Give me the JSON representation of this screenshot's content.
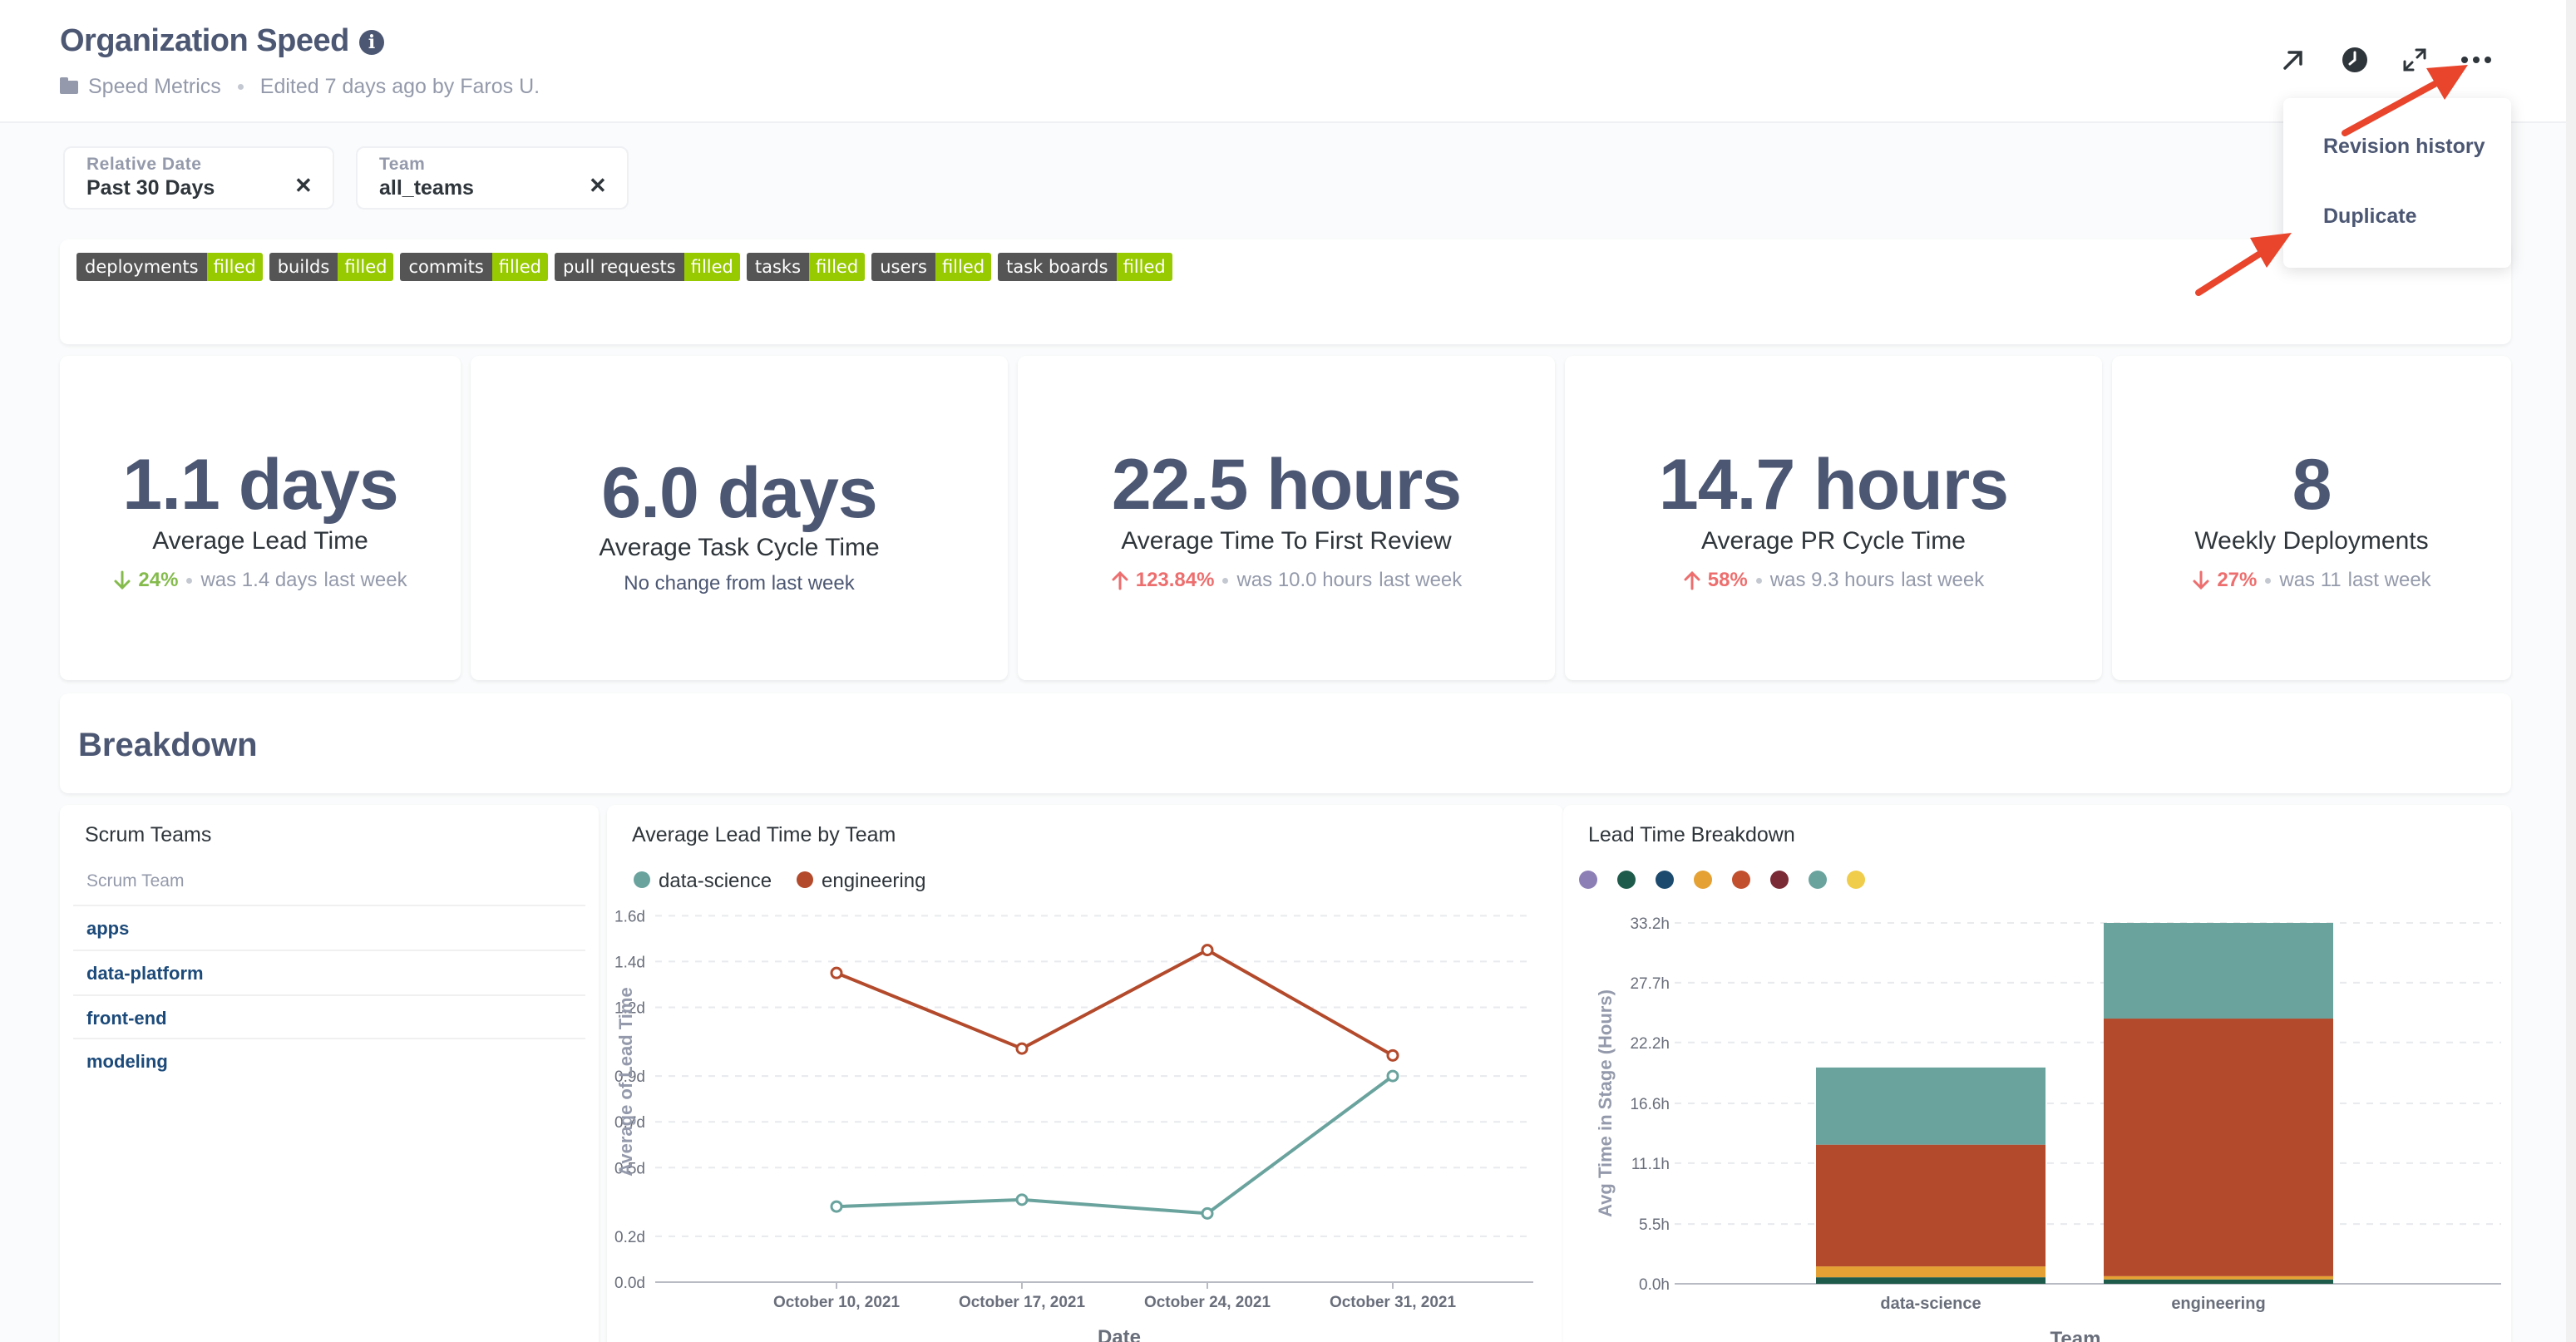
{
  "header": {
    "title": "Organization Speed",
    "collection": "Speed Metrics",
    "edited": "Edited 7 days ago by Faros U.",
    "icons": [
      "info-icon",
      "expand-icon",
      "history-icon",
      "fullscreen-icon",
      "more-icon"
    ]
  },
  "filters": [
    {
      "label": "Relative Date",
      "value": "Past 30 Days"
    },
    {
      "label": "Team",
      "value": "all_teams"
    }
  ],
  "tags": [
    {
      "key": "deployments",
      "value": "filled"
    },
    {
      "key": "builds",
      "value": "filled"
    },
    {
      "key": "commits",
      "value": "filled"
    },
    {
      "key": "pull requests",
      "value": "filled"
    },
    {
      "key": "tasks",
      "value": "filled"
    },
    {
      "key": "users",
      "value": "filled"
    },
    {
      "key": "task boards",
      "value": "filled"
    }
  ],
  "metrics": {
    "lead": {
      "value": "1.1 days",
      "label": "Average Lead Time",
      "pct": "24%",
      "was": "was 1.4 days",
      "period": "last week",
      "direction": "down",
      "color": "#84bb4c"
    },
    "task": {
      "value": "6.0 days",
      "label": "Average Task Cycle Time",
      "note": "No change from last week"
    },
    "review": {
      "value": "22.5 hours",
      "label": "Average Time To First Review",
      "pct": "123.84%",
      "was": "was 10.0 hours",
      "period": "last week",
      "direction": "up",
      "color": "#ed6e6e"
    },
    "pr": {
      "value": "14.7 hours",
      "label": "Average PR Cycle Time",
      "pct": "58%",
      "was": "was 9.3 hours",
      "period": "last week",
      "direction": "up",
      "color": "#ed6e6e"
    },
    "deploy": {
      "value": "8",
      "label": "Weekly Deployments",
      "pct": "27%",
      "was": "was 11",
      "period": "last week",
      "direction": "down",
      "color": "#ed6e6e"
    }
  },
  "breakdown": {
    "title": "Breakdown"
  },
  "scrum": {
    "title": "Scrum Teams",
    "column": "Scrum Team",
    "rows": [
      "apps",
      "data-platform",
      "front-end",
      "modeling"
    ]
  },
  "menu": {
    "items": [
      "Revision history",
      "Duplicate"
    ]
  },
  "chart_data": [
    {
      "type": "line",
      "title": "Average Lead Time by Team",
      "xlabel": "Date",
      "ylabel": "Average of Lead Time",
      "x": [
        "October 10, 2021",
        "October 17, 2021",
        "October 24, 2021",
        "October 31, 2021"
      ],
      "yticks": [
        "0.0d",
        "0.2d",
        "0.5d",
        "0.7d",
        "0.9d",
        "1.2d",
        "1.4d",
        "1.6d"
      ],
      "ylim": [
        0,
        1.75
      ],
      "legend_position": "top-left",
      "series": [
        {
          "name": "data-science",
          "color": "#6aa39e",
          "values": [
            0.33,
            0.36,
            0.3,
            0.9
          ]
        },
        {
          "name": "engineering",
          "color": "#b34a2c",
          "values": [
            1.35,
            1.02,
            1.45,
            0.99
          ]
        }
      ]
    },
    {
      "type": "bar",
      "stacked": true,
      "title": "Lead Time Breakdown",
      "xlabel": "Team",
      "ylabel": "Avg Time in Stage (Hours)",
      "categories": [
        "data-science",
        "engineering"
      ],
      "yticks": [
        "0.0h",
        "5.5h",
        "11.1h",
        "16.6h",
        "22.2h",
        "27.7h",
        "33.2h"
      ],
      "ylim": [
        0,
        33.2
      ],
      "legend_colors": [
        "#8c7fb5",
        "#1f5b4a",
        "#1c4a6e",
        "#e5a133",
        "#c2502f",
        "#7a2a35",
        "#6aa39e",
        "#f0cd4a"
      ],
      "series": [
        {
          "color": "#1f5b4a",
          "values": [
            0.6,
            0.4
          ]
        },
        {
          "color": "#e5a133",
          "values": [
            1.0,
            0.3
          ]
        },
        {
          "color": "#b34a2c",
          "values": [
            11.2,
            23.7
          ]
        },
        {
          "color": "#6aa39e",
          "values": [
            7.1,
            8.8
          ]
        }
      ]
    }
  ]
}
